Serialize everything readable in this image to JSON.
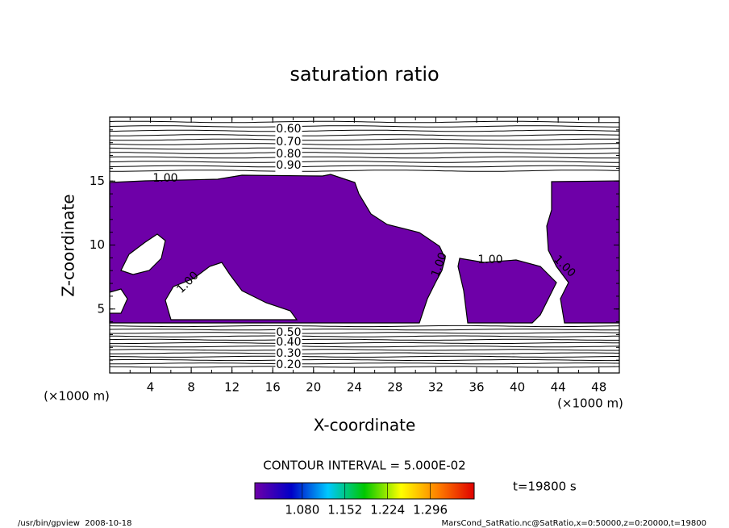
{
  "chart_data": {
    "type": "contour",
    "title": "saturation ratio",
    "xlabel": "X-coordinate",
    "ylabel": "Z-coordinate",
    "x_unit_labels": [
      "(×1000 m)",
      "(×1000 m)"
    ],
    "xlim": [
      0,
      50
    ],
    "xticks": [
      4,
      8,
      12,
      16,
      20,
      24,
      28,
      32,
      36,
      40,
      44,
      48
    ],
    "ylim": [
      0,
      20
    ],
    "yticks": [
      5,
      10,
      15
    ],
    "shade_color": "#6e00a8",
    "contour_labels": [
      "0.60",
      "0.70",
      "0.80",
      "0.90",
      "1.00",
      "1.00",
      "1.00",
      "1.00",
      "1.00",
      "0.50",
      "0.40",
      "0.30",
      "0.20"
    ],
    "contour_interval_label": "CONTOUR INTERVAL = 5.000E-02",
    "colorbar": {
      "clim": [
        1.0,
        1.37
      ],
      "ticks": [
        {
          "value": 1.08,
          "label": "1.080"
        },
        {
          "value": 1.152,
          "label": "1.152"
        },
        {
          "value": 1.224,
          "label": "1.224"
        },
        {
          "value": 1.296,
          "label": "1.296"
        }
      ],
      "colors": [
        "#6e00a8",
        "#0000c8",
        "#00c8ff",
        "#00c800",
        "#ffff00",
        "#ff8000",
        "#e00000"
      ]
    },
    "time_label": "t=19800 s",
    "footer_left": "/usr/bin/gpview  2008-10-18",
    "footer_right": "MarsCond_SatRatio.nc@SatRatio,x=0:50000,z=0:20000,t=19800"
  }
}
